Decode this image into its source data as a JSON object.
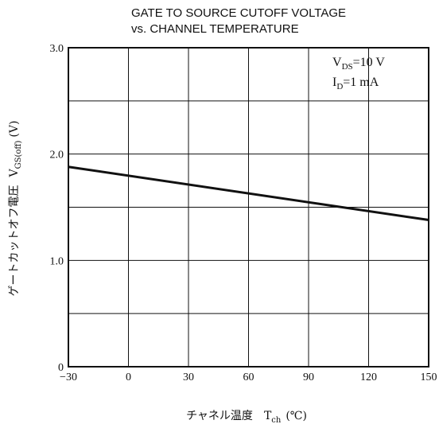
{
  "chart_data": {
    "type": "line",
    "title": "GATE TO SOURCE CUTOFF VOLTAGE",
    "subtitle": "vs. CHANNEL TEMPERATURE",
    "xlabel": {
      "text": "チャネル温度",
      "symbol": "T",
      "sub": "ch",
      "unit": "(℃)"
    },
    "ylabel": {
      "text": "ゲートカットオフ電圧",
      "symbol": "V",
      "sub": "GS(off)",
      "unit": "(V)"
    },
    "xlim": [
      -30,
      150
    ],
    "ylim": [
      0,
      3.0
    ],
    "x_ticks": [
      {
        "value": -30,
        "label": "−30"
      },
      {
        "value": 0,
        "label": "0"
      },
      {
        "value": 30,
        "label": "30"
      },
      {
        "value": 60,
        "label": "60"
      },
      {
        "value": 90,
        "label": "90"
      },
      {
        "value": 120,
        "label": "120"
      },
      {
        "value": 150,
        "label": "150"
      }
    ],
    "y_ticks": [
      {
        "value": 0,
        "label": "0"
      },
      {
        "value": 1.0,
        "label": "1.0"
      },
      {
        "value": 2.0,
        "label": "2.0"
      },
      {
        "value": 3.0,
        "label": "3.0"
      }
    ],
    "y_minor_grid": [
      0.5,
      1.5,
      2.5
    ],
    "grid": true,
    "conditions": [
      {
        "symbol": "V",
        "sub": "DS",
        "value": "=10 V"
      },
      {
        "symbol": "I",
        "sub": "D",
        "value": "=1 mA"
      }
    ],
    "series": [
      {
        "x": [
          -30,
          150
        ],
        "y": [
          1.88,
          1.38
        ]
      }
    ]
  }
}
